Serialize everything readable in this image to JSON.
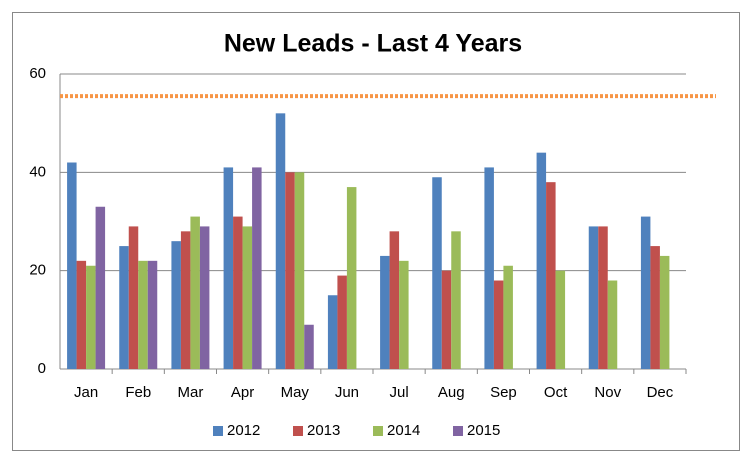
{
  "chart_data": {
    "type": "bar",
    "title": "New Leads - Last 4 Years",
    "categories": [
      "Jan",
      "Feb",
      "Mar",
      "Apr",
      "May",
      "Jun",
      "Jul",
      "Aug",
      "Sep",
      "Oct",
      "Nov",
      "Dec"
    ],
    "series": [
      {
        "name": "2012",
        "color": "#4f81bd",
        "values": [
          42,
          25,
          26,
          41,
          52,
          15,
          23,
          39,
          41,
          44,
          29,
          31
        ]
      },
      {
        "name": "2013",
        "color": "#c0504d",
        "values": [
          22,
          29,
          28,
          31,
          40,
          19,
          28,
          20,
          18,
          38,
          29,
          25
        ]
      },
      {
        "name": "2014",
        "color": "#9bbb59",
        "values": [
          21,
          22,
          31,
          29,
          40,
          37,
          22,
          28,
          21,
          20,
          18,
          23
        ]
      },
      {
        "name": "2015",
        "color": "#8064a2",
        "values": [
          33,
          22,
          29,
          41,
          9,
          null,
          null,
          null,
          null,
          null,
          null,
          null
        ]
      }
    ],
    "ylim": [
      0,
      60
    ],
    "yticks": [
      0,
      20,
      40,
      60
    ],
    "grid": true,
    "legend": "bottom",
    "reference_line": {
      "value": 55.5,
      "color": "#f79646"
    }
  }
}
